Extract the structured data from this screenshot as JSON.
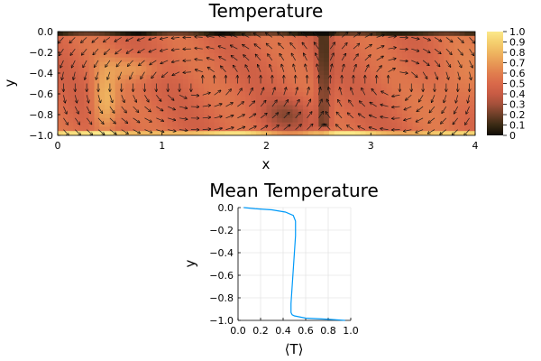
{
  "chart_data": [
    {
      "type": "heatmap",
      "title": "Temperature",
      "xlabel": "x",
      "ylabel": "y",
      "xlim": [
        0,
        4
      ],
      "ylim": [
        -1,
        0
      ],
      "xticks": [
        "0",
        "1",
        "2",
        "3",
        "4"
      ],
      "yticks": [
        "0.0",
        "−0.2",
        "−0.4",
        "−0.6",
        "−0.8",
        "−1.0"
      ],
      "colorbar": {
        "range": [
          0,
          1
        ],
        "ticks": [
          "0",
          "0.1",
          "0.2",
          "0.3",
          "0.4",
          "0.5",
          "0.6",
          "0.7",
          "0.8",
          "0.9",
          "1.0"
        ],
        "colormap": [
          "#0f0c06",
          "#3a2a14",
          "#6e3f28",
          "#a4503a",
          "#c85b44",
          "#d9694a",
          "#e17e4e",
          "#e89a56",
          "#efb660",
          "#f5d06f",
          "#fbe88a"
        ]
      },
      "overlay": "velocity quiver arrows, two counter-rotating convection cells (x 0–2.5 and x 2.5–4)",
      "field_mean": 0.5
    },
    {
      "type": "line",
      "title": "Mean Temperature",
      "xlabel": "⟨T⟩",
      "ylabel": "y",
      "xlim": [
        0,
        1
      ],
      "ylim": [
        -1,
        0
      ],
      "grid": true,
      "xticks": [
        "0.0",
        "0.2",
        "0.4",
        "0.6",
        "0.8",
        "1.0"
      ],
      "yticks": [
        "0.0",
        "−0.2",
        "−0.4",
        "−0.6",
        "−0.8",
        "−1.0"
      ],
      "series": [
        {
          "color": "#009af9",
          "x": [
            0.05,
            0.15,
            0.3,
            0.42,
            0.49,
            0.51,
            0.51,
            0.5,
            0.49,
            0.48,
            0.47,
            0.47,
            0.48,
            0.5,
            0.6,
            0.8,
            0.95
          ],
          "y": [
            0.0,
            -0.01,
            -0.02,
            -0.04,
            -0.07,
            -0.12,
            -0.25,
            -0.4,
            -0.55,
            -0.7,
            -0.85,
            -0.93,
            -0.95,
            -0.96,
            -0.98,
            -0.99,
            -1.0
          ]
        }
      ]
    }
  ]
}
